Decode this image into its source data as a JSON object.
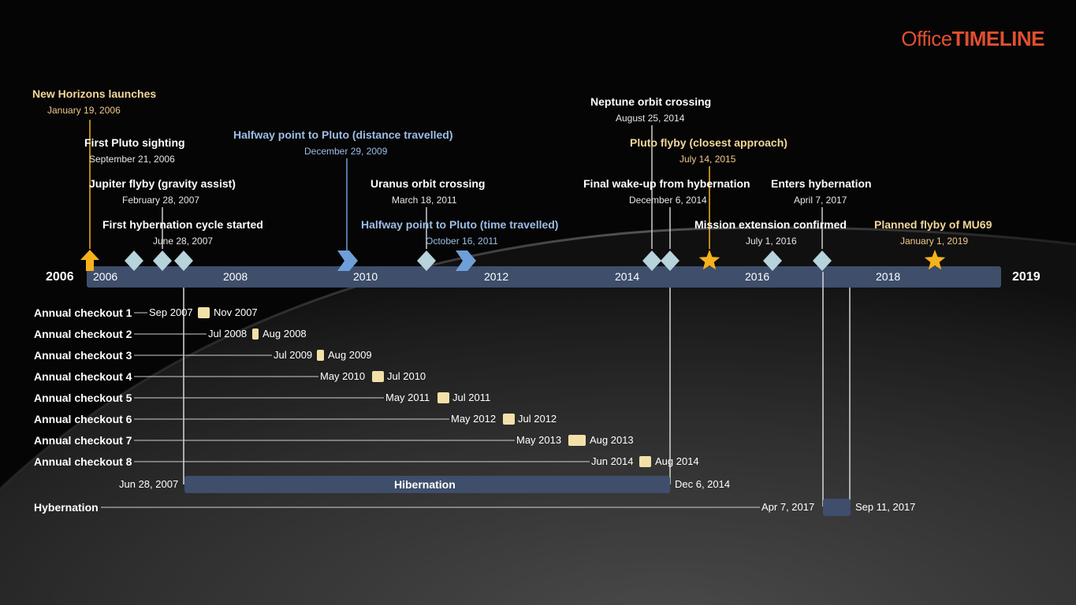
{
  "brand": {
    "office": "Office",
    "timeline": "TIMELINE"
  },
  "colors": {
    "bar": "#3e4e6b",
    "diamond": "#b7d3dc",
    "gold": "#f5b21b",
    "chevron": "#6f9fd8",
    "task": "#f2e0a8",
    "accent": "#e0502f"
  },
  "axis": {
    "start_label": "2006",
    "end_label": "2019",
    "years": [
      "2006",
      "2008",
      "2010",
      "2012",
      "2014",
      "2016",
      "2018"
    ]
  },
  "milestones": [
    {
      "title": "New Horizons launches",
      "date": "January 19, 2006",
      "icon": "arrow-up-icon",
      "style": "gold"
    },
    {
      "title": "First Pluto sighting",
      "date": "September 21, 2006",
      "icon": "diamond-icon",
      "style": "white"
    },
    {
      "title": "Jupiter flyby (gravity assist)",
      "date": "February 28, 2007",
      "icon": "diamond-icon",
      "style": "white"
    },
    {
      "title": "First hybernation cycle started",
      "date": "June 28, 2007",
      "icon": "diamond-icon",
      "style": "white"
    },
    {
      "title": "Halfway point to Pluto (distance travelled)",
      "date": "December 29, 2009",
      "icon": "chevron-icon",
      "style": "blue"
    },
    {
      "title": "Uranus orbit crossing",
      "date": "March 18, 2011",
      "icon": "diamond-icon",
      "style": "white"
    },
    {
      "title": "Halfway point to Pluto (time travelled)",
      "date": "October 16, 2011",
      "icon": "chevron-icon",
      "style": "blue"
    },
    {
      "title": "Neptune orbit crossing",
      "date": "August 25, 2014",
      "icon": "diamond-icon",
      "style": "white"
    },
    {
      "title": "Final wake-up from hybernation",
      "date": "December 6, 2014",
      "icon": "diamond-icon",
      "style": "white"
    },
    {
      "title": "Pluto flyby (closest approach)",
      "date": "July 14, 2015",
      "icon": "star-icon",
      "style": "gold"
    },
    {
      "title": "Mission extension confirmed",
      "date": "July 1, 2016",
      "icon": "diamond-icon",
      "style": "white"
    },
    {
      "title": "Enters hybernation",
      "date": "April 7, 2017",
      "icon": "diamond-icon",
      "style": "white"
    },
    {
      "title": "Planned flyby of MU69",
      "date": "January 1, 2019",
      "icon": "star-icon",
      "style": "gold"
    }
  ],
  "tasks": [
    {
      "label": "Annual checkout 1",
      "start": "Sep 2007",
      "end": "Nov 2007"
    },
    {
      "label": "Annual checkout 2",
      "start": "Jul 2008",
      "end": "Aug 2008"
    },
    {
      "label": "Annual checkout 3",
      "start": "Jul 2009",
      "end": "Aug 2009"
    },
    {
      "label": "Annual checkout 4",
      "start": "May 2010",
      "end": "Jul 2010"
    },
    {
      "label": "Annual checkout 5",
      "start": "May 2011",
      "end": "Jul 2011"
    },
    {
      "label": "Annual checkout 6",
      "start": "May 2012",
      "end": "Jul 2012"
    },
    {
      "label": "Annual checkout 7",
      "start": "May 2013",
      "end": "Aug 2013"
    },
    {
      "label": "Annual checkout 8",
      "start": "Jun 2014",
      "end": "Aug 2014"
    }
  ],
  "hibernation": {
    "label": "Hibernation",
    "start": "Jun 28, 2007",
    "end": "Dec 6, 2014"
  },
  "hybernation_row": {
    "label": "Hybernation",
    "start": "Apr 7, 2017",
    "end": "Sep 11, 2017"
  }
}
